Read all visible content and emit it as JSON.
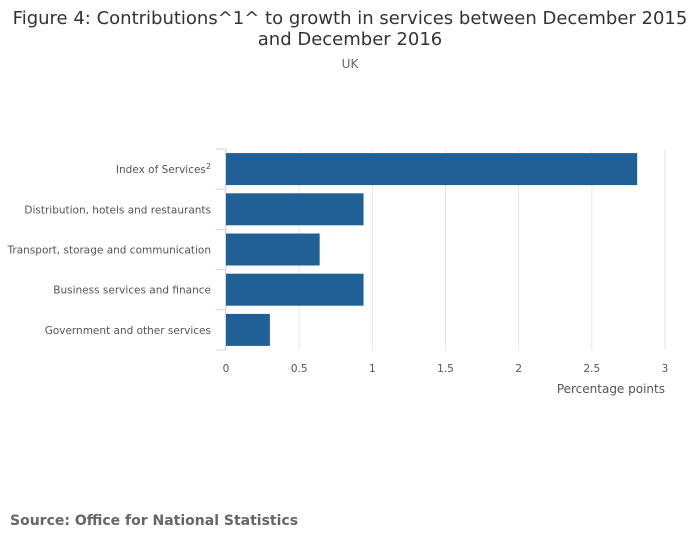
{
  "chart_data": {
    "type": "bar",
    "orientation": "horizontal",
    "title": "Figure 4: Contributions^1^ to growth in services between December 2015 and December 2016",
    "title_lines": [
      "Figure 4: Contributions^1^ to growth in services between December 2015",
      "and December 2016"
    ],
    "subtitle": "UK",
    "categories": [
      "Index of Services",
      "Distribution, hotels and restaurants",
      "Transport, storage and communication",
      "Business services and finance",
      "Government and other services"
    ],
    "category_superscripts": [
      "2",
      "",
      "",
      "",
      ""
    ],
    "values": [
      2.81,
      0.94,
      0.64,
      0.94,
      0.3
    ],
    "xlabel": "Percentage points",
    "ylabel": "",
    "xlim": [
      0,
      3
    ],
    "xticks": [
      0,
      0.5,
      1,
      1.5,
      2,
      2.5,
      3
    ],
    "xtick_labels": [
      "0",
      "0.5",
      "1",
      "1.5",
      "2",
      "2.5",
      "3"
    ],
    "grid": true,
    "bar_color": "#206095"
  },
  "source": "Source: Office for National Statistics"
}
